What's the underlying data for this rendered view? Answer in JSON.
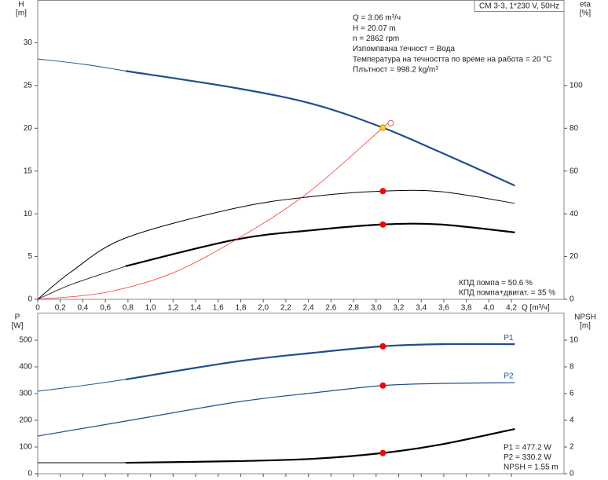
{
  "chart_data": [
    {
      "type": "line",
      "model": "CM 3-3, 1*230 V, 50Hz",
      "ylabel": "H",
      "yunit": "[m]",
      "y2label": "eta",
      "y2unit": "[%]",
      "xlabel": "Q [m³/ч]",
      "xlim": [
        0,
        4.666
      ],
      "xticks": [
        0,
        {
          "value": 0.2,
          "label": "0,2"
        },
        {
          "value": 0.4,
          "label": "0,4"
        },
        {
          "value": 0.6,
          "label": "0,6"
        },
        {
          "value": 0.8,
          "label": "0,8"
        },
        {
          "value": 1.0,
          "label": "1,0"
        },
        {
          "value": 1.2,
          "label": "1,2"
        },
        {
          "value": 1.4,
          "label": "1,4"
        },
        {
          "value": 1.6,
          "label": "1,6"
        },
        {
          "value": 1.8,
          "label": "1,8"
        },
        {
          "value": 2.0,
          "label": "2,0"
        },
        {
          "value": 2.2,
          "label": "2,2"
        },
        {
          "value": 2.4,
          "label": "2,4"
        },
        {
          "value": 2.6,
          "label": "2,6"
        },
        {
          "value": 2.8,
          "label": "2,8"
        },
        {
          "value": 3.0,
          "label": "3,0"
        },
        {
          "value": 3.2,
          "label": "3,2"
        },
        {
          "value": 3.4,
          "label": "3,4"
        },
        {
          "value": 3.6,
          "label": "3,6"
        },
        {
          "value": 3.8,
          "label": "3,8"
        },
        {
          "value": 4.0,
          "label": "4,0"
        },
        {
          "value": 4.2,
          "label": "4,2"
        }
      ],
      "show_xtick_labels": true,
      "ylim": [
        0,
        35
      ],
      "yticks": [
        0,
        5,
        10,
        15,
        20,
        25,
        30
      ],
      "y2lim": [
        0,
        140
      ],
      "y2ticks": [
        0,
        20,
        40,
        60,
        80,
        100
      ],
      "series": [
        {
          "color": "#1f4e8c",
          "width": 1,
          "x": [
            0,
            0.4,
            0.78
          ],
          "values": [
            28.1,
            27.5,
            26.7
          ]
        },
        {
          "color": "#1f4e8c",
          "width": 2.2,
          "x": [
            0.78,
            1.76,
            2.45,
            3.06,
            3.57,
            4.23
          ],
          "values": [
            26.7,
            24.7,
            22.8,
            20.07,
            17.2,
            13.3
          ]
        },
        {
          "color": "#000000",
          "width": 1,
          "axis": "y2",
          "x": [
            0,
            0.3,
            0.78,
            1.76,
            2.45,
            3.06,
            3.57,
            4.23
          ],
          "values": [
            0,
            13,
            28.7,
            42.7,
            48.2,
            50.6,
            50.4,
            44.9
          ]
        },
        {
          "color": "#000000",
          "width": 0.8,
          "axis": "y2",
          "x": [
            0,
            0.3,
            0.78
          ],
          "values": [
            0,
            7,
            15.5
          ]
        },
        {
          "color": "#000000",
          "width": 2.2,
          "axis": "y2",
          "x": [
            0.78,
            1.76,
            2.45,
            3.06,
            3.57,
            4.23
          ],
          "values": [
            15.5,
            28,
            32.4,
            35,
            35,
            31.3
          ]
        },
        {
          "color": "#ff3030",
          "width": 0.8,
          "x": [
            0,
            0.6,
            1.2,
            1.8,
            2.4,
            3.06,
            3.1
          ],
          "values": [
            0,
            0.8,
            3.1,
            7.3,
            12.5,
            20.07,
            20.6
          ]
        }
      ],
      "points": [
        {
          "x": 3.06,
          "value": 20.07,
          "fill": "#ffd700",
          "stroke": "#e08000"
        },
        {
          "x": 3.13,
          "value": 20.6,
          "fill": "#ffffff",
          "stroke": "#e06060"
        },
        {
          "x": 3.06,
          "value": 50.6,
          "axis": "y2",
          "fill": "#ff0000",
          "stroke": "#ff0000"
        },
        {
          "x": 3.06,
          "value": 35,
          "axis": "y2",
          "fill": "#ff0000",
          "stroke": "#ff0000"
        }
      ],
      "info": [
        "Q = 3.06 m³/ч",
        "H = 20.07 m",
        "n = 2862 rpm",
        "Изпомпвана течност = Вода",
        "Температура на течността по време на работа = 20 °C",
        "Плътност = 998.2 kg/m³"
      ],
      "notes": [
        "КПД помпа = 50.6 %",
        "КПД помпа+двигат. = 35 %"
      ]
    },
    {
      "type": "line",
      "ylabel": "P",
      "yunit": "[W]",
      "y2label": "NPSH",
      "y2unit": "[m]",
      "xlim": [
        0,
        4.666
      ],
      "xticks": [
        0,
        0.2,
        0.4,
        0.6,
        0.8,
        1.0,
        1.2,
        1.4,
        1.6,
        1.8,
        2.0,
        2.2,
        2.4,
        2.6,
        2.8,
        3.0,
        3.2,
        3.4,
        3.6,
        3.8,
        4.0,
        4.2
      ],
      "show_xtick_labels": false,
      "ylim": [
        0,
        603
      ],
      "yticks": [
        0,
        100,
        200,
        300,
        400,
        500
      ],
      "y2lim": [
        0,
        12.06
      ],
      "y2ticks": [
        0,
        2,
        4,
        6,
        8,
        10
      ],
      "series": [
        {
          "color": "#1f4e8c",
          "width": 1,
          "x": [
            0,
            0.4,
            0.78
          ],
          "values": [
            309,
            330,
            353
          ]
        },
        {
          "name": "P1",
          "color": "#1f4e8c",
          "width": 2.2,
          "x": [
            0.78,
            1.76,
            2.45,
            3.06,
            3.57,
            4.23
          ],
          "values": [
            353,
            420,
            453,
            477.2,
            485,
            485
          ]
        },
        {
          "name": "P2",
          "color": "#1f4e8c",
          "width": 1.2,
          "x": [
            0,
            0.78,
            1.76,
            2.45,
            3.06,
            3.57,
            4.23
          ],
          "values": [
            141,
            197,
            268,
            303,
            330.2,
            338,
            341
          ]
        },
        {
          "color": "#000000",
          "width": 1,
          "axis": "y2",
          "x": [
            0,
            0.78
          ],
          "values": [
            0.82,
            0.82
          ]
        },
        {
          "color": "#000000",
          "width": 2.2,
          "axis": "y2",
          "x": [
            0.78,
            1.76,
            2.45,
            3.06,
            3.57,
            4.23
          ],
          "values": [
            0.82,
            0.94,
            1.12,
            1.55,
            2.18,
            3.35
          ]
        }
      ],
      "points": [
        {
          "x": 3.06,
          "value": 477.2,
          "fill": "#ff0000",
          "stroke": "#ff0000"
        },
        {
          "x": 3.06,
          "value": 330.2,
          "fill": "#ff0000",
          "stroke": "#ff0000"
        },
        {
          "x": 3.06,
          "value": 1.55,
          "axis": "y2",
          "fill": "#ff0000",
          "stroke": "#ff0000"
        }
      ],
      "notes": [
        "P1 = 477.2 W",
        "P2 = 330.2 W",
        "NPSH = 1.55 m"
      ]
    }
  ]
}
